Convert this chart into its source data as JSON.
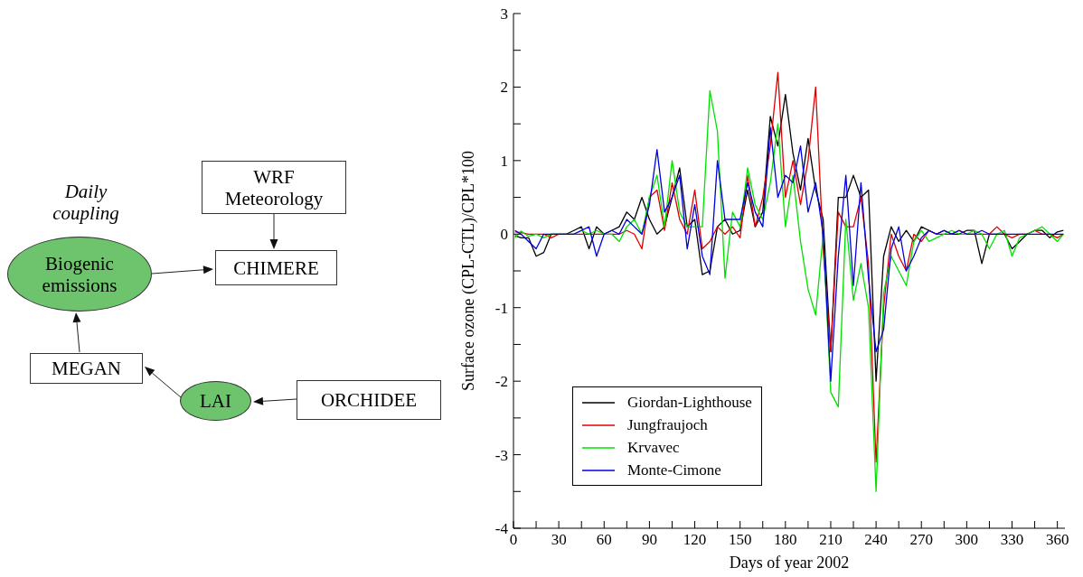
{
  "chart_data": [
    {
      "type": "other",
      "annotations": [
        "Daily coupling",
        "WRF Meteorology",
        "CHIMERE",
        "Biogenic emissions",
        "MEGAN",
        "LAI",
        "ORCHIDEE"
      ]
    },
    {
      "type": "line",
      "xlabel": "Days of year 2002",
      "ylabel": "Surface ozone (CPL-CTL)/CPL*100",
      "xlim": [
        0,
        365
      ],
      "ylim": [
        -4,
        3
      ],
      "xticks": [
        0,
        {
          "value": 15,
          "label": null
        },
        30,
        {
          "value": 45,
          "label": null
        },
        60,
        {
          "value": 75,
          "label": null
        },
        90,
        {
          "value": 105,
          "label": null
        },
        120,
        {
          "value": 135,
          "label": null
        },
        150,
        {
          "value": 165,
          "label": null
        },
        180,
        {
          "value": 195,
          "label": null
        },
        210,
        {
          "value": 225,
          "label": null
        },
        240,
        {
          "value": 255,
          "label": null
        },
        270,
        {
          "value": 285,
          "label": null
        },
        300,
        {
          "value": 315,
          "label": null
        },
        330,
        {
          "value": 345,
          "label": null
        },
        360
      ],
      "yticks": [
        -4,
        {
          "value": -3.5,
          "label": null
        },
        -3,
        {
          "value": -2.5,
          "label": null
        },
        -2,
        {
          "value": -1.5,
          "label": null
        },
        -1,
        {
          "value": -0.5,
          "label": null
        },
        0,
        {
          "value": 0.5,
          "label": null
        },
        1,
        {
          "value": 1.5,
          "label": null
        },
        2,
        {
          "value": 2.5,
          "label": null
        },
        3
      ],
      "grid": false,
      "legend": "bottom left",
      "marker": "none",
      "line_style": "solid",
      "x": [
        1,
        5,
        10,
        15,
        20,
        25,
        30,
        35,
        40,
        45,
        50,
        55,
        60,
        65,
        70,
        75,
        80,
        85,
        90,
        95,
        100,
        105,
        110,
        115,
        120,
        125,
        130,
        135,
        140,
        145,
        150,
        155,
        160,
        165,
        170,
        175,
        180,
        185,
        190,
        195,
        200,
        205,
        210,
        215,
        220,
        225,
        230,
        235,
        240,
        245,
        250,
        255,
        260,
        265,
        270,
        275,
        280,
        285,
        290,
        295,
        300,
        305,
        310,
        315,
        320,
        325,
        330,
        335,
        340,
        345,
        350,
        355,
        360,
        364
      ],
      "series": [
        {
          "name": "Giordan-Lighthouse",
          "color": "#000000",
          "values": [
            -0.02,
            -0.05,
            -0.05,
            -0.3,
            -0.25,
            0,
            0,
            0,
            0.05,
            0.1,
            -0.2,
            0.1,
            0,
            0.05,
            0.1,
            0.3,
            0.2,
            0.5,
            0.2,
            0,
            0.1,
            0.5,
            0.9,
            0.1,
            0.2,
            -0.55,
            -0.5,
            0.1,
            0.2,
            0,
            0.05,
            0.6,
            0.1,
            0.3,
            1.6,
            1.2,
            1.9,
            1.1,
            0.6,
            1.3,
            0.6,
            0.2,
            -1.6,
            0.5,
            0.5,
            0.8,
            0.5,
            0.6,
            -2,
            -0.3,
            0.1,
            -0.1,
            0.05,
            -0.1,
            0.1,
            0.05,
            0,
            0.05,
            0,
            0,
            0.05,
            0.05,
            -0.4,
            0,
            0,
            0,
            -0.2,
            -0.1,
            0,
            0.05,
            0.05,
            -0.05,
            0.03,
            0.05
          ]
        },
        {
          "name": "Jungfraujoch",
          "color": "#e00000",
          "values": [
            0.03,
            0.02,
            0,
            0,
            0,
            -0.05,
            0,
            0,
            0,
            0,
            0,
            0,
            0,
            0,
            0,
            0.05,
            0,
            -0.2,
            0.5,
            0.6,
            0.05,
            0.7,
            0.2,
            0,
            0.6,
            -0.2,
            -0.1,
            0.1,
            0,
            0.1,
            -0.05,
            0.8,
            0.1,
            0.5,
            1.2,
            2.2,
            0.5,
            1,
            0.4,
            1,
            2,
            -0.2,
            -1.6,
            0.3,
            0.1,
            0.1,
            0.5,
            -0.4,
            -3.1,
            -1,
            0,
            -0.3,
            -0.5,
            0,
            -0.1,
            0.05,
            0,
            0,
            0,
            0.05,
            0,
            0,
            0,
            0,
            0.1,
            0,
            -0.05,
            0,
            0,
            0.05,
            0,
            0,
            -0.05,
            0
          ]
        },
        {
          "name": "Krvavec",
          "color": "#00e000",
          "values": [
            -0.05,
            0.04,
            -0.03,
            0,
            -0.05,
            0,
            0,
            0,
            0,
            0.05,
            0,
            0.05,
            0,
            0,
            -0.1,
            0.1,
            0.2,
            0,
            0.5,
            0.8,
            0.1,
            1,
            0.3,
            0.1,
            0.1,
            0.1,
            1.95,
            1.4,
            -0.6,
            0.3,
            0.1,
            0.9,
            0.4,
            0.2,
            0.7,
            1.5,
            0.1,
            0.8,
            -0.1,
            -0.75,
            -1.1,
            0,
            -2.15,
            -2.35,
            0.2,
            -0.9,
            -0.4,
            -1,
            -3.5,
            -0.8,
            -0.3,
            -0.5,
            -0.7,
            -0.1,
            0.05,
            -0.1,
            -0.05,
            0,
            0.05,
            0,
            0,
            0.05,
            0,
            -0.2,
            0,
            0.05,
            -0.3,
            -0.05,
            0,
            0.05,
            0.1,
            0,
            -0.1,
            0
          ]
        },
        {
          "name": "Monte-Cimone",
          "color": "#0000e0",
          "values": [
            0.05,
            0,
            -0.1,
            -0.2,
            0,
            0,
            0,
            0,
            0,
            0.05,
            0.1,
            -0.3,
            0,
            0.05,
            0,
            0.2,
            0.1,
            0,
            0.4,
            1.15,
            0.3,
            0.5,
            0.8,
            -0.2,
            0.4,
            -0.3,
            -0.55,
            1,
            0.2,
            0.2,
            0.2,
            0.7,
            0.3,
            0.1,
            1.45,
            0.5,
            0.8,
            0.7,
            1.2,
            0.3,
            0.7,
            0,
            -2,
            -0.3,
            0.8,
            -0.7,
            0.7,
            -0.6,
            -1.6,
            -1.3,
            -0.2,
            0.1,
            -0.5,
            -0.3,
            -0.05,
            0.05,
            0,
            0.05,
            0,
            0.05,
            0,
            0,
            0.05,
            0,
            0,
            0,
            0,
            0,
            0,
            0,
            0,
            0,
            0,
            0
          ]
        }
      ]
    }
  ]
}
